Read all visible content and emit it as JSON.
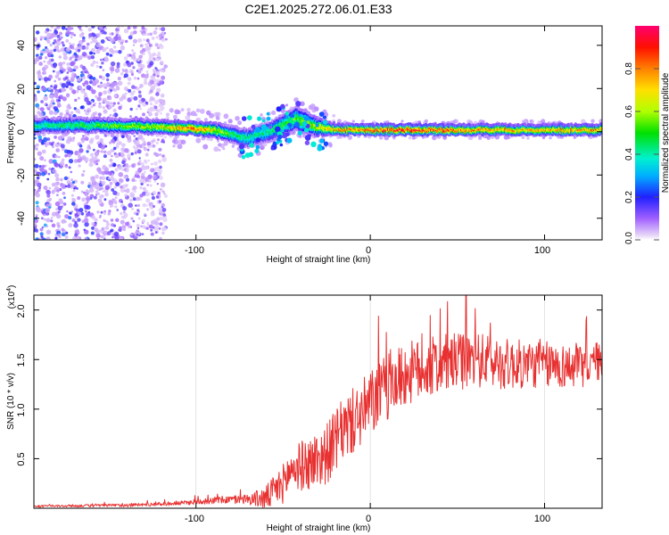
{
  "title": "C2E1.2025.272.06.01.E33",
  "colors": {
    "snr_line": "#e83030",
    "frame": "#000000",
    "background": "#ffffff"
  },
  "chart_data": [
    {
      "type": "heatmap",
      "xlabel": "Height of straight line (km)",
      "ylabel": "Frequency (Hz)",
      "xlim": [
        -193,
        133
      ],
      "ylim": [
        -50,
        49
      ],
      "xticks": [
        -100,
        0,
        100
      ],
      "xtick_labels": [
        "-100",
        "0",
        "100"
      ],
      "yticks": [
        -40,
        -20,
        0,
        20,
        40
      ],
      "ytick_labels": [
        "-40",
        "-20",
        "0",
        "20",
        "40"
      ],
      "colorbar": {
        "label": "Normalized spectral amplitude",
        "range": [
          0,
          1
        ],
        "ticks": [
          0.0,
          0.2,
          0.4,
          0.6,
          0.8
        ],
        "tick_labels": [
          "0.0",
          "0.2",
          "0.4",
          "0.6",
          "0.8"
        ]
      },
      "ridge_center": [
        {
          "x": -190,
          "y": 3
        },
        {
          "x": -150,
          "y": 3
        },
        {
          "x": -110,
          "y": 2
        },
        {
          "x": -90,
          "y": 1
        },
        {
          "x": -70,
          "y": -3
        },
        {
          "x": -55,
          "y": 1
        },
        {
          "x": -42,
          "y": 6
        },
        {
          "x": -30,
          "y": 2
        },
        {
          "x": -15,
          "y": 1
        },
        {
          "x": 0,
          "y": 1
        },
        {
          "x": 50,
          "y": 1
        },
        {
          "x": 133,
          "y": 1
        }
      ],
      "ridge_peak_amplitude": [
        {
          "x": -190,
          "a": 0.45
        },
        {
          "x": -150,
          "a": 0.55
        },
        {
          "x": -120,
          "a": 0.7
        },
        {
          "x": -100,
          "a": 0.9
        },
        {
          "x": -80,
          "a": 0.5
        },
        {
          "x": -60,
          "a": 0.45
        },
        {
          "x": -40,
          "a": 0.55
        },
        {
          "x": -20,
          "a": 0.8
        },
        {
          "x": 0,
          "a": 0.9
        },
        {
          "x": 20,
          "a": 1.0
        },
        {
          "x": 60,
          "a": 0.85
        },
        {
          "x": 90,
          "a": 0.8
        },
        {
          "x": 133,
          "a": 0.85
        }
      ],
      "ridge_halfwidth_hz": [
        {
          "x": -190,
          "w": 3
        },
        {
          "x": -100,
          "w": 2.5
        },
        {
          "x": -60,
          "w": 4
        },
        {
          "x": -40,
          "w": 5
        },
        {
          "x": -20,
          "w": 2
        },
        {
          "x": 133,
          "w": 2
        }
      ],
      "noise_scatter": {
        "x_range": [
          -193,
          -117
        ],
        "y_range": [
          -50,
          49
        ],
        "amplitude_range": [
          0.05,
          0.3
        ]
      }
    },
    {
      "type": "line",
      "xlabel": "Height of straight line (km)",
      "ylabel": "SNR (10 * v/v)",
      "y_multiplier": "(x10",
      "y_multiplier_exp": "4",
      "y_multiplier_close": ")",
      "xlim": [
        -193,
        133
      ],
      "ylim": [
        0,
        2.15
      ],
      "xticks": [
        -100,
        0,
        100
      ],
      "xtick_labels": [
        "-100",
        "0",
        "100"
      ],
      "yticks": [
        0.5,
        1.0,
        1.5,
        2.0
      ],
      "ytick_labels": [
        "0.5",
        "1.0",
        "1.5",
        "2.0"
      ],
      "envelope_mean": [
        {
          "x": -193,
          "y": 0.02
        },
        {
          "x": -140,
          "y": 0.03
        },
        {
          "x": -110,
          "y": 0.05
        },
        {
          "x": -90,
          "y": 0.08
        },
        {
          "x": -60,
          "y": 0.1
        },
        {
          "x": -50,
          "y": 0.25
        },
        {
          "x": -45,
          "y": 0.4
        },
        {
          "x": -35,
          "y": 0.45
        },
        {
          "x": -25,
          "y": 0.55
        },
        {
          "x": -15,
          "y": 0.8
        },
        {
          "x": -5,
          "y": 0.95
        },
        {
          "x": 5,
          "y": 1.15
        },
        {
          "x": 20,
          "y": 1.35
        },
        {
          "x": 40,
          "y": 1.45
        },
        {
          "x": 60,
          "y": 1.5
        },
        {
          "x": 80,
          "y": 1.45
        },
        {
          "x": 100,
          "y": 1.45
        },
        {
          "x": 120,
          "y": 1.42
        },
        {
          "x": 133,
          "y": 1.5
        }
      ],
      "envelope_noise": [
        {
          "x": -193,
          "n": 0.01
        },
        {
          "x": -110,
          "n": 0.02
        },
        {
          "x": -70,
          "n": 0.05
        },
        {
          "x": -50,
          "n": 0.2
        },
        {
          "x": -30,
          "n": 0.3
        },
        {
          "x": 0,
          "n": 0.35
        },
        {
          "x": 40,
          "n": 0.3
        },
        {
          "x": 133,
          "n": 0.2
        }
      ],
      "peak": {
        "x": 55,
        "y": 2.15
      }
    }
  ]
}
